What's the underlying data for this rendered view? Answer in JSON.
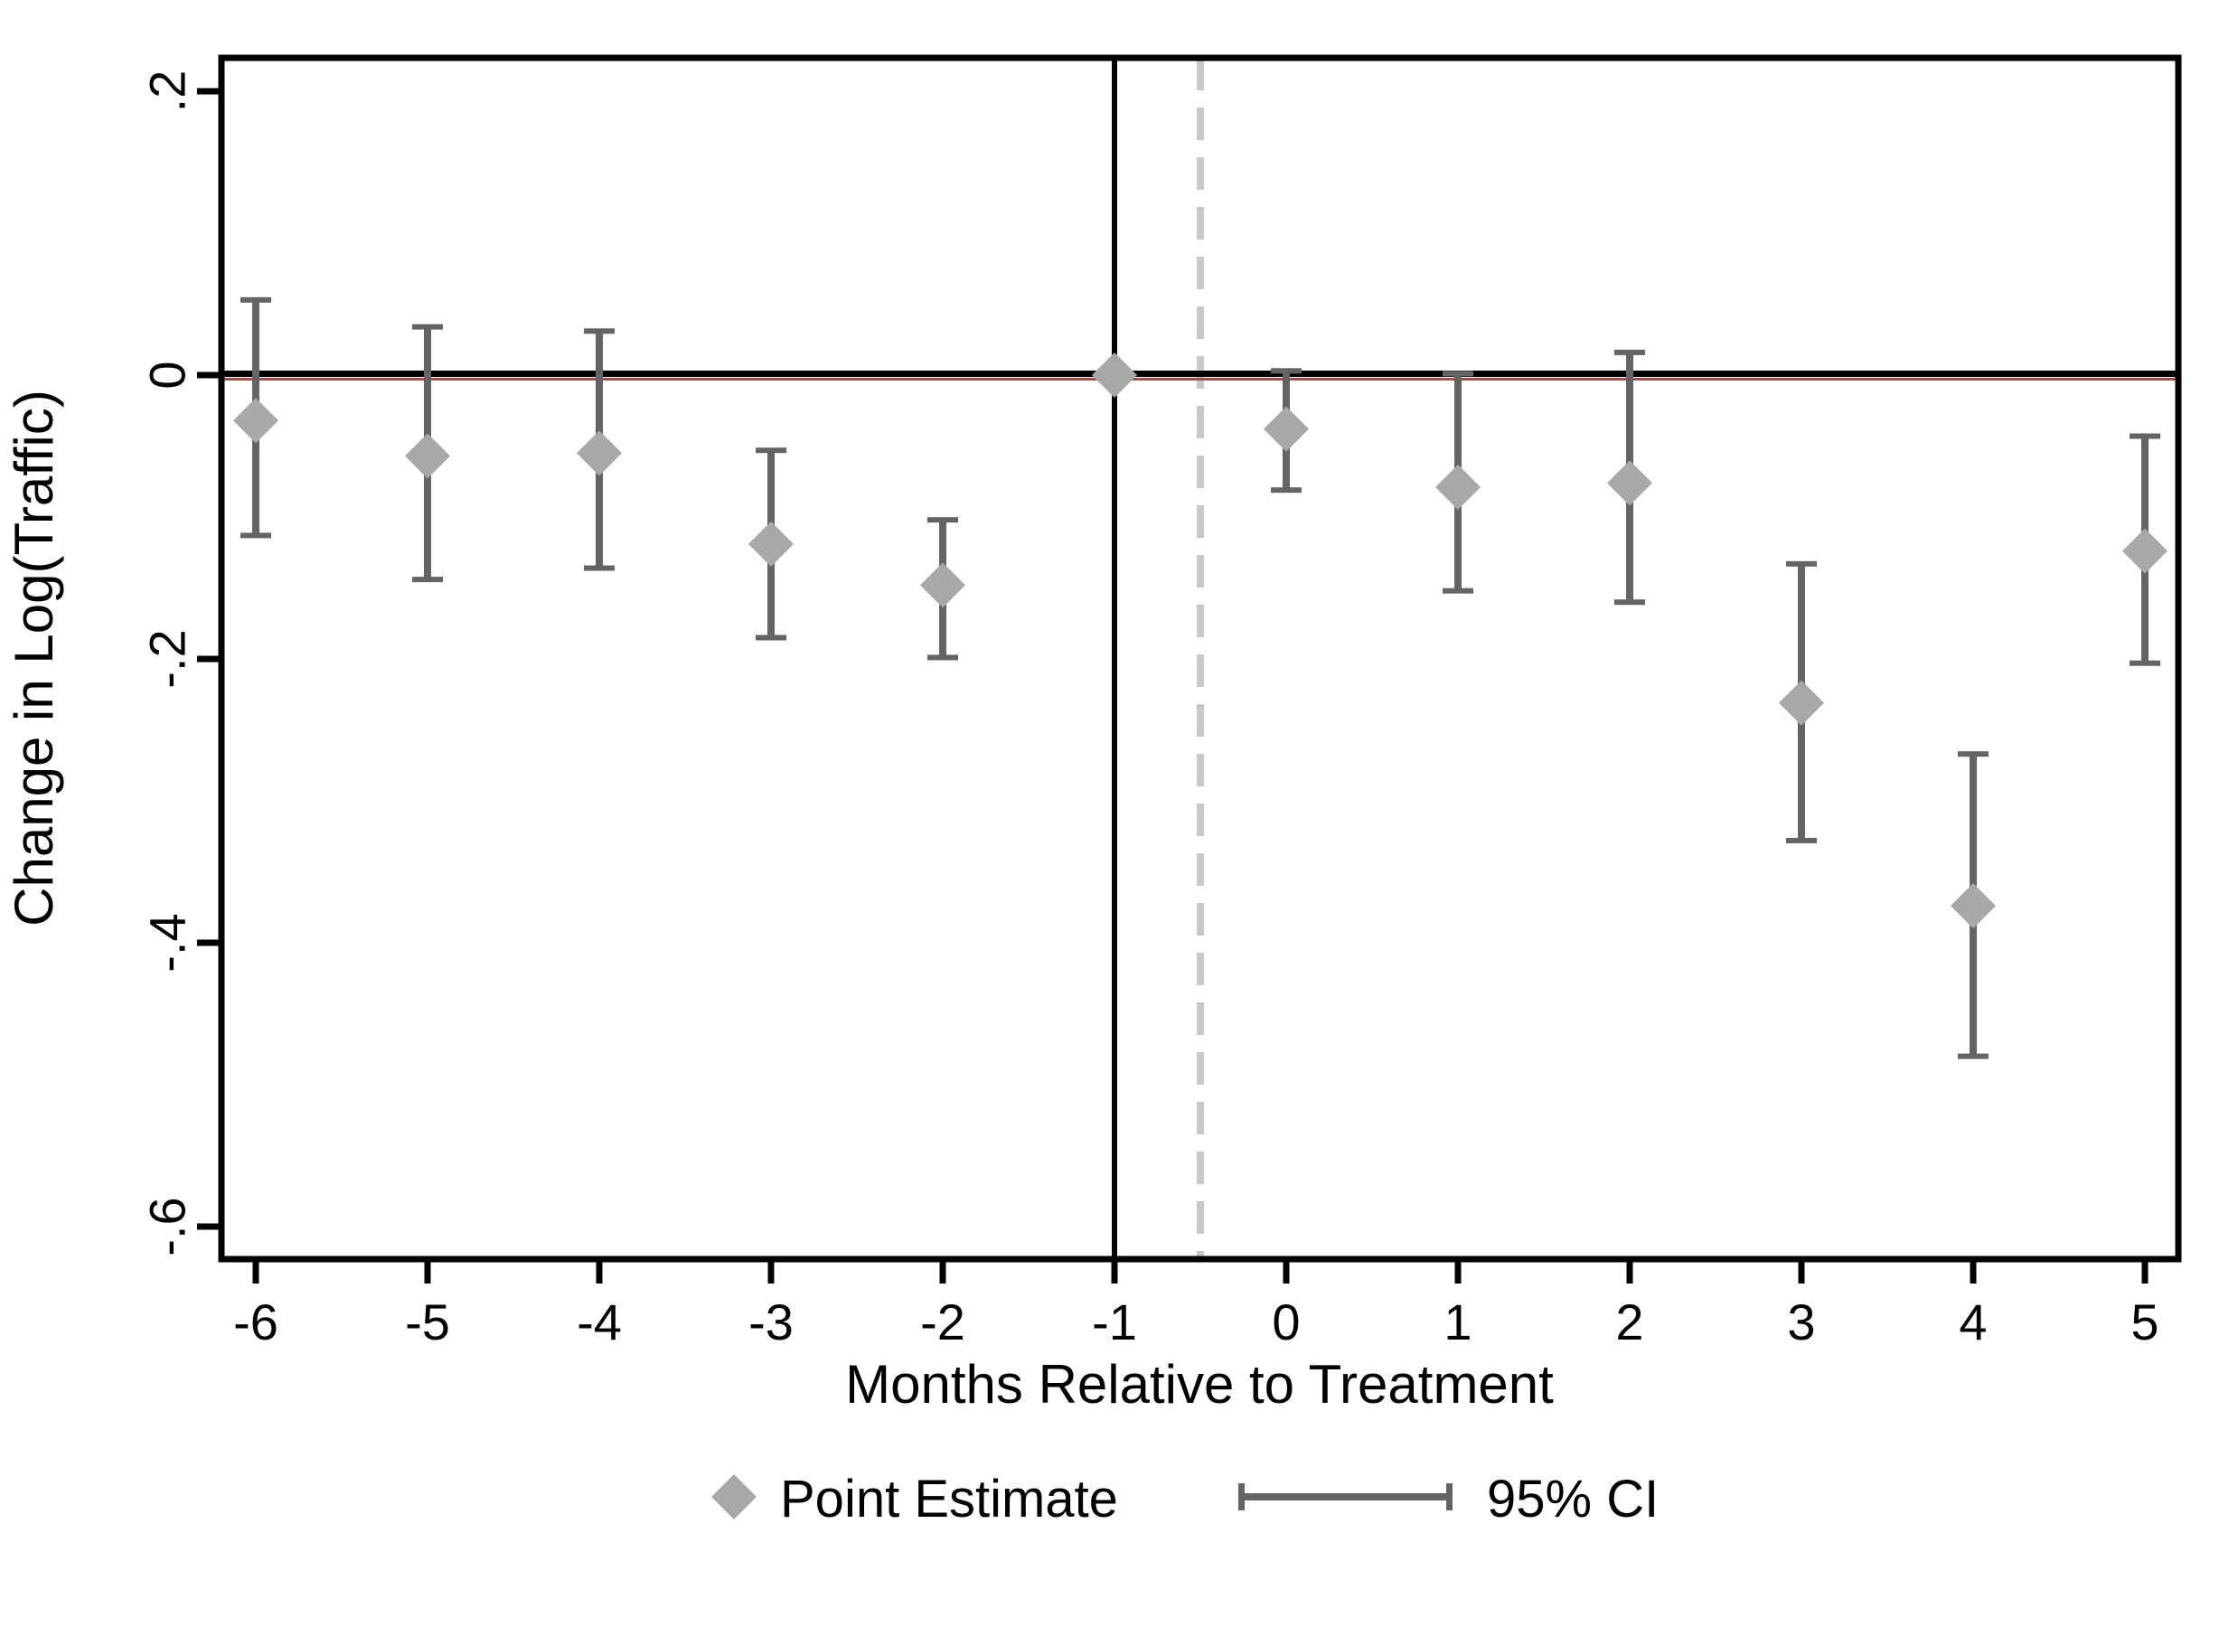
{
  "figure": {
    "xlabel": "Months Relative to Treatment",
    "ylabel": "Change in Log(Traffic)"
  },
  "colors": {
    "background": "#ffffff",
    "axis": "#000000",
    "marker_fill": "#a8a8a8",
    "whisker": "#646464",
    "zero_line": "#000000",
    "zero_line_accent": "#a0504c",
    "solid_vline": "#000000",
    "dashed_vline": "#c9c9c9"
  },
  "chart_data": {
    "type": "scatter",
    "subtype": "event-study-errorbar",
    "title": "",
    "xlabel": "Months Relative to Treatment",
    "ylabel": "Change in Log(Traffic)",
    "legend": [
      "Point Estimate",
      "95% CI"
    ],
    "legend_position": "bottom",
    "grid": false,
    "xlim": [
      -6.2,
      5.2
    ],
    "ylim": [
      -0.623,
      0.224
    ],
    "x_tick_values": [
      -6,
      -5,
      -4,
      -3,
      -2,
      -1,
      0,
      1,
      2,
      3,
      4,
      5
    ],
    "x_tick_labels": [
      "-6",
      "-5",
      "-4",
      "-3",
      "-2",
      "-1",
      "0",
      "1",
      "2",
      "3",
      "4",
      "5"
    ],
    "y_tick_values": [
      0.2,
      0,
      -0.2,
      -0.4,
      -0.6
    ],
    "y_tick_labels": [
      ".2",
      "0",
      "-.2",
      "-.4",
      "-.6"
    ],
    "hline_y": 0,
    "solid_vline_x": -1,
    "dashed_vline_x": -0.5,
    "reference_point": {
      "x": -1,
      "y": 0
    },
    "points": [
      {
        "x": -6,
        "est": -0.032,
        "lo": -0.113,
        "hi": 0.053
      },
      {
        "x": -5,
        "est": -0.057,
        "lo": -0.144,
        "hi": 0.034
      },
      {
        "x": -4,
        "est": -0.055,
        "lo": -0.136,
        "hi": 0.031
      },
      {
        "x": -3,
        "est": -0.119,
        "lo": -0.185,
        "hi": -0.053
      },
      {
        "x": -2,
        "est": -0.148,
        "lo": -0.199,
        "hi": -0.102
      },
      {
        "x": 0,
        "est": -0.038,
        "lo": -0.081,
        "hi": 0.003
      },
      {
        "x": 1,
        "est": -0.079,
        "lo": -0.152,
        "hi": 0.001
      },
      {
        "x": 2,
        "est": -0.076,
        "lo": -0.16,
        "hi": 0.016
      },
      {
        "x": 3,
        "est": -0.231,
        "lo": -0.328,
        "hi": -0.133
      },
      {
        "x": 4,
        "est": -0.374,
        "lo": -0.48,
        "hi": -0.267
      },
      {
        "x": 5,
        "est": -0.124,
        "lo": -0.203,
        "hi": -0.043
      }
    ]
  }
}
